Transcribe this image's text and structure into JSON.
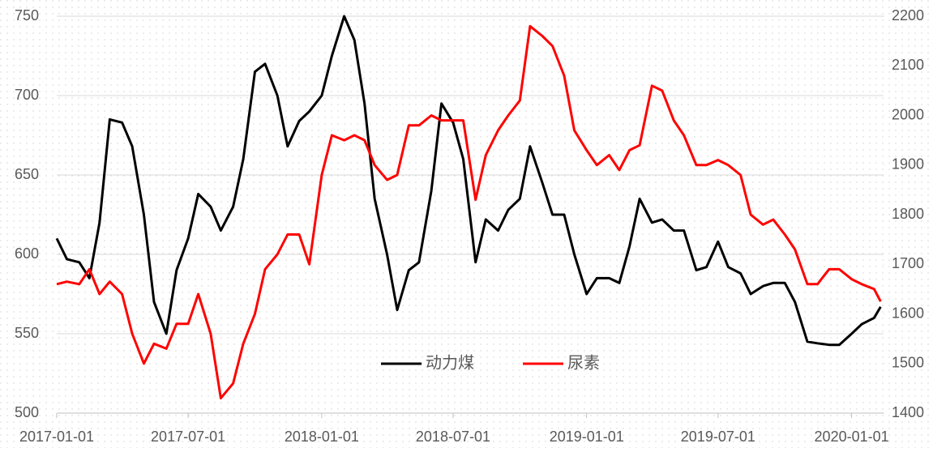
{
  "chart_data": {
    "type": "line",
    "x": [
      "2017-01-01",
      "2017-01-15",
      "2017-02-01",
      "2017-02-15",
      "2017-03-01",
      "2017-03-15",
      "2017-04-01",
      "2017-04-15",
      "2017-05-01",
      "2017-05-15",
      "2017-06-01",
      "2017-06-15",
      "2017-07-01",
      "2017-07-15",
      "2017-08-01",
      "2017-08-15",
      "2017-09-01",
      "2017-09-15",
      "2017-10-01",
      "2017-10-15",
      "2017-11-01",
      "2017-11-15",
      "2017-12-01",
      "2017-12-15",
      "2018-01-01",
      "2018-01-15",
      "2018-02-01",
      "2018-02-15",
      "2018-03-01",
      "2018-03-15",
      "2018-04-01",
      "2018-04-15",
      "2018-05-01",
      "2018-05-15",
      "2018-06-01",
      "2018-06-15",
      "2018-07-01",
      "2018-07-15",
      "2018-08-01",
      "2018-08-15",
      "2018-09-01",
      "2018-09-15",
      "2018-10-01",
      "2018-10-15",
      "2018-11-01",
      "2018-11-15",
      "2018-12-01",
      "2018-12-15",
      "2019-01-01",
      "2019-01-15",
      "2019-02-01",
      "2019-02-15",
      "2019-03-01",
      "2019-03-15",
      "2019-04-01",
      "2019-04-15",
      "2019-05-01",
      "2019-05-15",
      "2019-06-01",
      "2019-06-15",
      "2019-07-01",
      "2019-07-15",
      "2019-08-01",
      "2019-08-15",
      "2019-09-01",
      "2019-09-15",
      "2019-10-01",
      "2019-10-15",
      "2019-11-01",
      "2019-11-15",
      "2019-12-01",
      "2019-12-15",
      "2020-01-01",
      "2020-01-15",
      "2020-02-01",
      "2020-02-10"
    ],
    "series": [
      {
        "name": "动力煤",
        "color": "#000000",
        "values": [
          610,
          597,
          595,
          585,
          620,
          685,
          683,
          668,
          625,
          570,
          550,
          590,
          610,
          638,
          630,
          615,
          630,
          660,
          715,
          720,
          700,
          668,
          684,
          690,
          700,
          725,
          750,
          735,
          695,
          635,
          600,
          565,
          590,
          595,
          640,
          695,
          683,
          660,
          595,
          622,
          615,
          628,
          635,
          668,
          645,
          625,
          625,
          600,
          575,
          585,
          585,
          582,
          605,
          635,
          620,
          622,
          615,
          615,
          590,
          592,
          608,
          592,
          588,
          575,
          580,
          582,
          582,
          570,
          545,
          544,
          543,
          543,
          550,
          556,
          560,
          567
        ]
      },
      {
        "name": "尿素",
        "color": "#ff0000",
        "axis": "y2",
        "values": [
          1660,
          1665,
          1660,
          1690,
          1640,
          1665,
          1640,
          1560,
          1500,
          1540,
          1530,
          1580,
          1580,
          1640,
          1560,
          1430,
          1460,
          1540,
          1600,
          1690,
          1720,
          1760,
          1760,
          1700,
          1880,
          1960,
          1950,
          1960,
          1950,
          1900,
          1870,
          1880,
          1980,
          1980,
          2000,
          1990,
          1990,
          1990,
          1830,
          1920,
          1970,
          2000,
          2030,
          2180,
          2160,
          2140,
          2080,
          1970,
          1930,
          1900,
          1920,
          1890,
          1930,
          1940,
          2060,
          2050,
          1990,
          1960,
          1900,
          1900,
          1910,
          1900,
          1880,
          1800,
          1780,
          1790,
          1760,
          1730,
          1660,
          1660,
          1690,
          1690,
          1670,
          1660,
          1650,
          1625
        ]
      }
    ],
    "xlim": [
      "2017-01-01",
      "2020-02-14"
    ],
    "xticks": [
      "2017-01-01",
      "2017-07-01",
      "2018-01-01",
      "2018-07-01",
      "2019-01-01",
      "2019-07-01",
      "2020-01-01"
    ],
    "ylim": [
      500,
      750
    ],
    "yticks": [
      500,
      550,
      600,
      650,
      700,
      750
    ],
    "y2lim": [
      1400,
      2200
    ],
    "y2ticks": [
      1400,
      1500,
      1600,
      1700,
      1800,
      1900,
      2000,
      2100,
      2200
    ],
    "grid": true,
    "legend": "bottom"
  }
}
